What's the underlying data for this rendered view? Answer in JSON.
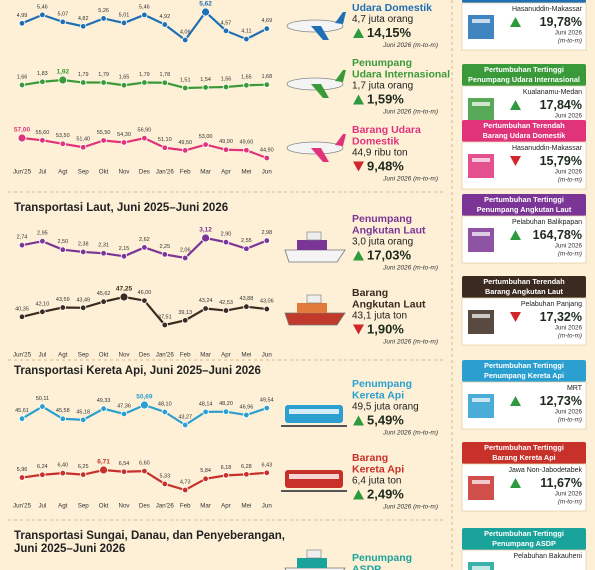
{
  "section_titles": [
    [
      "Transportasi Laut, Juni 2025–Juni 2026"
    ],
    [
      "Transportasi Kereta Api, Juni 2025–Juni 2026"
    ],
    [
      "Transportasi Sungai, Danau, dan Penyeberangan,",
      "Juni 2025–Juni 2026"
    ]
  ],
  "chart_data": [
    {
      "type": "line",
      "color": "#1f6fb5",
      "values": [
        4.99,
        5.46,
        5.07,
        4.82,
        5.26,
        5.01,
        5.46,
        4.92,
        4.06,
        5.62,
        4.57,
        4.11,
        4.69
      ],
      "value_labels": [
        "4,99",
        "5,46",
        "5,07",
        "4,82",
        "5,26",
        "5,01",
        "5,46",
        "4,92",
        "4,06",
        "5,62",
        "4,57",
        "4,11",
        "4,69"
      ],
      "panel": {
        "name": [
          "Udara Domestik"
        ],
        "amount": "4,7 juta orang",
        "change": "14,15%",
        "direction": "up",
        "period": "Juni 2026 (m-to-m)"
      }
    },
    {
      "type": "line",
      "color": "#3a9a3a",
      "values": [
        1.66,
        1.83,
        1.92,
        1.79,
        1.79,
        1.65,
        1.79,
        1.78,
        1.51,
        1.54,
        1.56,
        1.65,
        1.68
      ],
      "value_labels": [
        "1,66",
        "1,83",
        "1,92",
        "1,79",
        "1,79",
        "1,65",
        "1,79",
        "1,78",
        "1,51",
        "1,54",
        "1,56",
        "1,65",
        "1,68"
      ],
      "panel": {
        "name": [
          "Penumpang",
          "Udara Internasional"
        ],
        "amount": "1,7 juta orang",
        "change": "1,59%",
        "direction": "up",
        "period": "Juni 2026 (m-to-m)"
      }
    },
    {
      "type": "line",
      "color": "#e0337a",
      "categories": [
        "Jun'25",
        "Jul",
        "Agt",
        "Sep",
        "Okt",
        "Nov",
        "Des",
        "Jan'26",
        "Feb",
        "Mar",
        "Apr",
        "Mei",
        "Jun"
      ],
      "values": [
        57.0,
        55.6,
        53.5,
        51.4,
        55.5,
        54.3,
        56.9,
        51.1,
        49.5,
        53.0,
        49.9,
        49.6,
        44.9
      ],
      "value_labels": [
        "57,00",
        "55,60",
        "53,50",
        "51,40",
        "55,50",
        "54,30",
        "56,90",
        "51,10",
        "49,50",
        "53,00",
        "49,90",
        "49,60",
        "44,90"
      ],
      "panel": {
        "name": [
          "Barang Udara",
          "Domestik"
        ],
        "amount": "44,9 ribu ton",
        "change": "9,48%",
        "direction": "down",
        "period": "Juni 2026 (m-to-m)"
      }
    },
    {
      "type": "line",
      "color": "#7b3596",
      "values": [
        2.74,
        2.95,
        2.5,
        2.38,
        2.31,
        2.15,
        2.62,
        2.25,
        2.06,
        3.12,
        2.9,
        2.55,
        2.98
      ],
      "value_labels": [
        "2,74",
        "2,95",
        "2,50",
        "2,38",
        "2,31",
        "2,15",
        "2,62",
        "2,25",
        "2,06",
        "3,12",
        "2,90",
        "2,55",
        "2,98"
      ],
      "panel": {
        "name": [
          "Penumpang",
          "Angkutan Laut"
        ],
        "amount": "3,0 juta orang",
        "change": "17,03%",
        "direction": "up",
        "period": "Juni 2026 (m-to-m)"
      }
    },
    {
      "type": "line",
      "color": "#3b2a20",
      "categories": [
        "Jun'25",
        "Jul",
        "Agt",
        "Sep",
        "Okt",
        "Nov",
        "Des",
        "Jan'26",
        "Feb",
        "Mar",
        "Apr",
        "Mei",
        "Jun"
      ],
      "values": [
        40.35,
        42.1,
        43.59,
        43.49,
        45.62,
        47.25,
        46.0,
        37.51,
        39.13,
        43.24,
        42.53,
        43.88,
        43.06
      ],
      "value_labels": [
        "40,35",
        "42,10",
        "43,59",
        "43,49",
        "45,62",
        "47,25",
        "46,00",
        "37,51",
        "39,13",
        "43,24",
        "42,53",
        "43,88",
        "43,06"
      ],
      "panel": {
        "name": [
          "Barang",
          "Angkutan Laut"
        ],
        "amount": "43,1 juta ton",
        "change": "1,90%",
        "direction": "down",
        "period": "Juni 2026 (m-to-m)"
      }
    },
    {
      "type": "line",
      "color": "#2a9fd0",
      "values": [
        45.61,
        50.11,
        45.58,
        45.18,
        49.33,
        47.36,
        50.69,
        48.1,
        43.27,
        48.14,
        48.2,
        46.96,
        49.54
      ],
      "value_labels": [
        "45,61",
        "50,11",
        "45,58",
        "45,18",
        "49,33",
        "47,36",
        "50,69",
        "48,10",
        "43,27",
        "48,14",
        "48,20",
        "46,96",
        "49,54"
      ],
      "panel": {
        "name": [
          "Penumpang",
          "Kereta Api"
        ],
        "amount": "49,5 juta orang",
        "change": "5,49%",
        "direction": "up",
        "period": "Juni 2026 (m-to-m)"
      }
    },
    {
      "type": "line",
      "color": "#c8302a",
      "categories": [
        "Jun'25",
        "Jul",
        "Agt",
        "Sep",
        "Okt",
        "Nov",
        "Des",
        "Jan'26",
        "Feb",
        "Mar",
        "Apr",
        "Mei",
        "Jun"
      ],
      "values": [
        5.96,
        6.24,
        6.4,
        6.25,
        6.71,
        6.54,
        6.6,
        5.33,
        4.73,
        5.84,
        6.18,
        6.28,
        6.43
      ],
      "value_labels": [
        "5,96",
        "6,24",
        "6,40",
        "6,25",
        "6,71",
        "6,54",
        "6,60",
        "5,33",
        "4,73",
        "5,84",
        "6,18",
        "6,28",
        "6,43"
      ],
      "panel": {
        "name": [
          "Barang",
          "Kereta Api"
        ],
        "amount": "6,4 juta ton",
        "change": "2,49%",
        "direction": "up",
        "period": "Juni 2026 (m-to-m)"
      }
    }
  ],
  "river_panel": {
    "name": [
      "Penumpang",
      "ASDP"
    ],
    "color": "#1aa39a"
  },
  "cards": [
    {
      "color": "#1f6fb5",
      "place": "Hasanuddin-Makassar",
      "change": "19,78%",
      "direction": "up",
      "period": [
        "Juni 2026",
        "(m-to-m)"
      ]
    },
    {
      "color": "#3a9a3a",
      "header": [
        "Pertumbuhan Tertinggi",
        "Penumpang Udara Internasional"
      ],
      "place": "Kualanamu-Medan",
      "change": "17,84%",
      "direction": "up",
      "period": [
        "Juni 2026"
      ]
    },
    {
      "color": "#e0337a",
      "header": [
        "Pertumbuhan Terendah",
        "Barang Udara Domestik"
      ],
      "place": "Hasanuddin-Makassar",
      "change": "15,79%",
      "direction": "down",
      "period": [
        "Juni 2026",
        "(m-to-m)"
      ]
    },
    {
      "color": "#7b3596",
      "header": [
        "Pertumbuhan Tertinggi",
        "Penumpang Angkutan Laut"
      ],
      "place": "Pelabuhan Balikpapan",
      "change": "164,78%",
      "direction": "up",
      "period": [
        "Juni 2026",
        "(m-to-m)"
      ]
    },
    {
      "color": "#3b2a20",
      "header": [
        "Pertumbuhan Terendah",
        "Barang Angkutan Laut"
      ],
      "place": "Pelabuhan Panjang",
      "change": "17,32%",
      "direction": "down",
      "period": [
        "Juni 2026",
        "(m-to-m)"
      ]
    },
    {
      "color": "#2a9fd0",
      "header": [
        "Pertumbuhan Tertinggi",
        "Penumpang Kereta Api"
      ],
      "place": "MRT",
      "change": "12,73%",
      "direction": "up",
      "period": [
        "Juni 2026",
        "(m-to-m)"
      ]
    },
    {
      "color": "#c8302a",
      "header": [
        "Pertumbuhan Tertinggi",
        "Barang Kereta Api"
      ],
      "place": "Jawa Non-Jabodetabek",
      "change": "11,67%",
      "direction": "up",
      "period": [
        "Juni 2026",
        "(m-to-m)"
      ]
    },
    {
      "color": "#1aa39a",
      "header": [
        "Pertumbuhan Tertinggi",
        "Penumpang ASDP"
      ],
      "place": "Pelabuhan Bakauheni"
    }
  ]
}
